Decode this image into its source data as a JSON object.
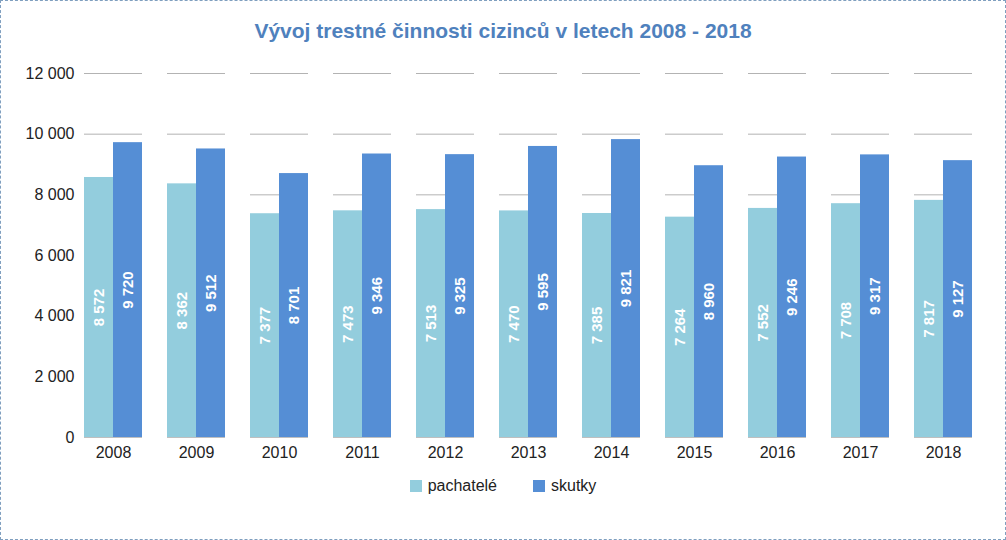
{
  "chart_data": {
    "type": "bar",
    "title": "Vývoj trestné činnosti cizinců v letech 2008 - 2018",
    "categories": [
      "2008",
      "2009",
      "2010",
      "2011",
      "2012",
      "2013",
      "2014",
      "2015",
      "2016",
      "2017",
      "2018"
    ],
    "series": [
      {
        "name": "pachatelé",
        "color": "#93cddd",
        "values": [
          8572,
          8362,
          7377,
          7473,
          7513,
          7470,
          7385,
          7264,
          7552,
          7708,
          7817
        ],
        "value_labels": [
          "8 572",
          "8 362",
          "7 377",
          "7 473",
          "7 513",
          "7 470",
          "7 385",
          "7 264",
          "7 552",
          "7 708",
          "7 817"
        ]
      },
      {
        "name": "skutky",
        "color": "#558ed5",
        "values": [
          9720,
          9512,
          8701,
          9346,
          9325,
          9595,
          9821,
          8960,
          9246,
          9317,
          9127
        ],
        "value_labels": [
          "9 720",
          "9 512",
          "8 701",
          "9 346",
          "9 325",
          "9 595",
          "9 821",
          "8 960",
          "9 246",
          "9 317",
          "9 127"
        ]
      }
    ],
    "ylim": [
      0,
      12000
    ],
    "yticks": [
      0,
      {
        "value": 2000,
        "label": "2 000"
      },
      {
        "value": 4000,
        "label": "4 000"
      },
      {
        "value": 6000,
        "label": "6 000"
      },
      {
        "value": 8000,
        "label": "8 000"
      },
      {
        "value": 10000,
        "label": "10 000"
      },
      {
        "value": 12000,
        "label": "12 000"
      }
    ],
    "grid": true,
    "legend": "bottom",
    "data_labels": true
  }
}
